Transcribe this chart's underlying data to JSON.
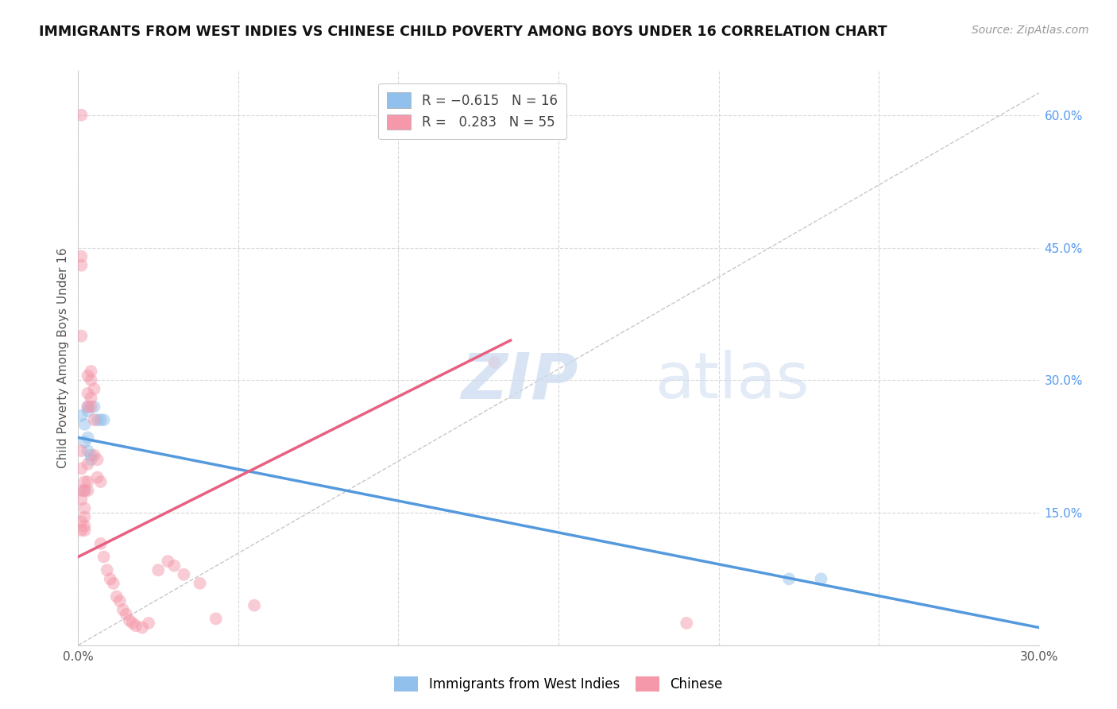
{
  "title": "IMMIGRANTS FROM WEST INDIES VS CHINESE CHILD POVERTY AMONG BOYS UNDER 16 CORRELATION CHART",
  "source": "Source: ZipAtlas.com",
  "ylabel": "Child Poverty Among Boys Under 16",
  "xlim": [
    0,
    0.3
  ],
  "ylim": [
    0,
    0.65
  ],
  "x_tick_positions": [
    0.0,
    0.05,
    0.1,
    0.15,
    0.2,
    0.25,
    0.3
  ],
  "x_tick_labels": [
    "0.0%",
    "",
    "",
    "",
    "",
    "",
    "30.0%"
  ],
  "y_ticks_right": [
    0.0,
    0.15,
    0.3,
    0.45,
    0.6
  ],
  "y_tick_labels_right": [
    "",
    "15.0%",
    "30.0%",
    "45.0%",
    "60.0%"
  ],
  "grid_color": "#d8d8d8",
  "legend1_label": "R = −0.615   N = 16",
  "legend2_label": "R =   0.283   N = 55",
  "blue_color": "#92C0EC",
  "pink_color": "#F598AA",
  "blue_line_color": "#5599DD",
  "pink_line_color": "#E86080",
  "diag_line_color": "#c8c8c8",
  "west_indies_x": [
    0.001,
    0.002,
    0.002,
    0.003,
    0.003,
    0.003,
    0.003,
    0.004,
    0.004,
    0.005,
    0.006,
    0.007,
    0.008,
    0.002,
    0.222,
    0.232
  ],
  "west_indies_y": [
    0.26,
    0.25,
    0.23,
    0.27,
    0.265,
    0.235,
    0.22,
    0.215,
    0.21,
    0.27,
    0.255,
    0.255,
    0.255,
    0.175,
    0.075,
    0.075
  ],
  "chinese_x": [
    0.001,
    0.001,
    0.001,
    0.001,
    0.001,
    0.001,
    0.001,
    0.001,
    0.001,
    0.002,
    0.002,
    0.002,
    0.002,
    0.002,
    0.002,
    0.003,
    0.003,
    0.003,
    0.003,
    0.003,
    0.003,
    0.004,
    0.004,
    0.004,
    0.004,
    0.005,
    0.005,
    0.005,
    0.006,
    0.006,
    0.007,
    0.007,
    0.008,
    0.009,
    0.01,
    0.011,
    0.012,
    0.013,
    0.014,
    0.015,
    0.016,
    0.017,
    0.018,
    0.02,
    0.022,
    0.025,
    0.028,
    0.03,
    0.033,
    0.038,
    0.043,
    0.055,
    0.13,
    0.19,
    0.001
  ],
  "chinese_y": [
    0.6,
    0.44,
    0.43,
    0.35,
    0.22,
    0.2,
    0.175,
    0.165,
    0.14,
    0.185,
    0.175,
    0.155,
    0.145,
    0.135,
    0.13,
    0.305,
    0.285,
    0.27,
    0.205,
    0.185,
    0.175,
    0.31,
    0.3,
    0.28,
    0.27,
    0.29,
    0.255,
    0.215,
    0.21,
    0.19,
    0.185,
    0.115,
    0.1,
    0.085,
    0.075,
    0.07,
    0.055,
    0.05,
    0.04,
    0.035,
    0.028,
    0.025,
    0.022,
    0.02,
    0.025,
    0.085,
    0.095,
    0.09,
    0.08,
    0.07,
    0.03,
    0.045,
    0.32,
    0.025,
    0.13
  ],
  "blue_line_x": [
    0.0,
    0.3
  ],
  "blue_line_y": [
    0.235,
    0.02
  ],
  "pink_line_x": [
    0.0,
    0.135
  ],
  "pink_line_y": [
    0.1,
    0.345
  ],
  "diag_line_x": [
    0.0,
    0.3
  ],
  "diag_line_y": [
    0.0,
    0.625
  ],
  "marker_size": 130,
  "alpha": 0.5,
  "title_fontsize": 12.5,
  "source_fontsize": 10,
  "tick_fontsize": 11,
  "ylabel_fontsize": 11,
  "legend_fontsize": 12
}
